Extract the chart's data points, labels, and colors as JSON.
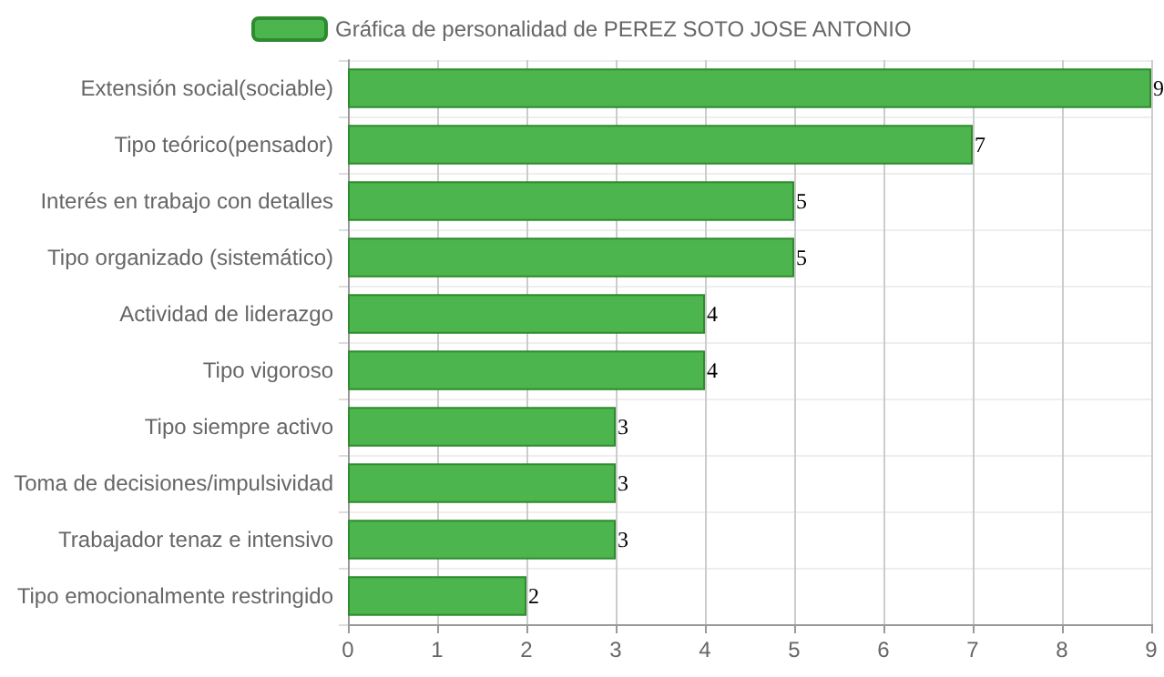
{
  "chart_data": {
    "type": "bar",
    "orientation": "horizontal",
    "categories": [
      "Extensión social(sociable)",
      "Tipo teórico(pensador)",
      "Interés en trabajo con detalles",
      "Tipo organizado (sistemático)",
      "Actividad de liderazgo",
      "Tipo vigoroso",
      "Tipo siempre activo",
      "Toma de decisiones/impulsividad",
      "Trabajador tenaz e intensivo",
      "Tipo emocionalmente restringido"
    ],
    "series": [
      {
        "name": "Gráfica de personalidad de PEREZ SOTO JOSE ANTONIO",
        "color": "#4db54d",
        "values": [
          9,
          7,
          5,
          5,
          4,
          4,
          3,
          3,
          3,
          2
        ]
      }
    ],
    "xlim": [
      0,
      9
    ],
    "xticks": [
      0,
      1,
      2,
      3,
      4,
      5,
      6,
      7,
      8,
      9
    ],
    "grid": true,
    "legend": "top",
    "data_labels": true
  }
}
